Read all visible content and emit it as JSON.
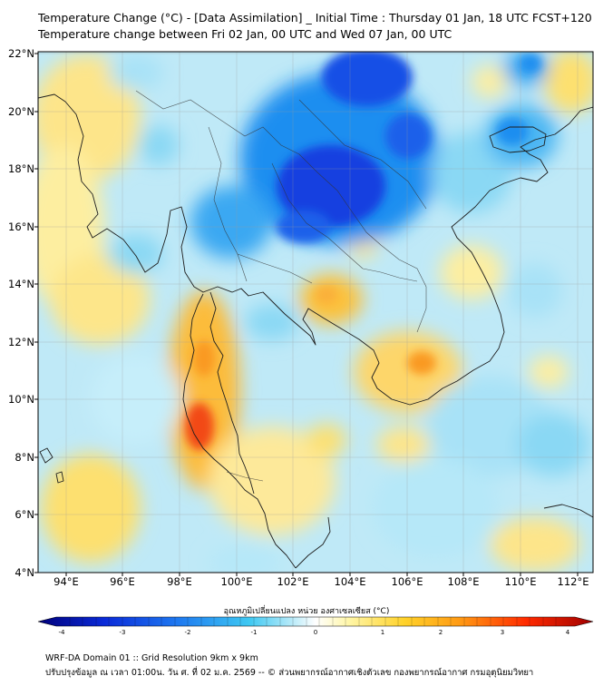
{
  "header": {
    "title_line1": "Temperature Change (°C) - [Data Assimilation] _ Initial Time : Thursday 01 Jan, 18 UTC FCST+120",
    "title_line2": "Temperature change between Fri 02 Jan, 00 UTC and Wed 07 Jan, 00 UTC"
  },
  "map": {
    "lat_labels": [
      "22°N",
      "20°N",
      "18°N",
      "16°N",
      "14°N",
      "12°N",
      "10°N",
      "8°N",
      "6°N",
      "4°N"
    ],
    "lon_labels": [
      "94°E",
      "96°E",
      "98°E",
      "100°E",
      "102°E",
      "104°E",
      "106°E",
      "108°E",
      "110°E",
      "112°E"
    ]
  },
  "colorbar": {
    "title": "อุณหภูมิเปลี่ยนแปลง หน่วย องศาเซลเซียส (°C)",
    "ticks": [
      "-4",
      "-3",
      "-2",
      "-1",
      "0",
      "1",
      "2",
      "3",
      "4"
    ],
    "colors": [
      "#00007a",
      "#0a2ad8",
      "#1e78f0",
      "#3ec8f2",
      "#ccf0fa",
      "#ffffff",
      "#fff6a8",
      "#ffd22a",
      "#ff9a14",
      "#ff2a00",
      "#a00000"
    ]
  },
  "footer": {
    "line1": "WRF-DA Domain 01 :: Grid Resolution 9km x 9km",
    "line2": "ปรับปรุงข้อมูล ณ เวลา 01:00น. วัน ศ. ที่ 02 ม.ค. 2569 -- © ส่วนพยากรณ์อากาศเชิงตัวเลข กองพยากรณ์อากาศ กรมอุตุนิยมวิทยา"
  }
}
